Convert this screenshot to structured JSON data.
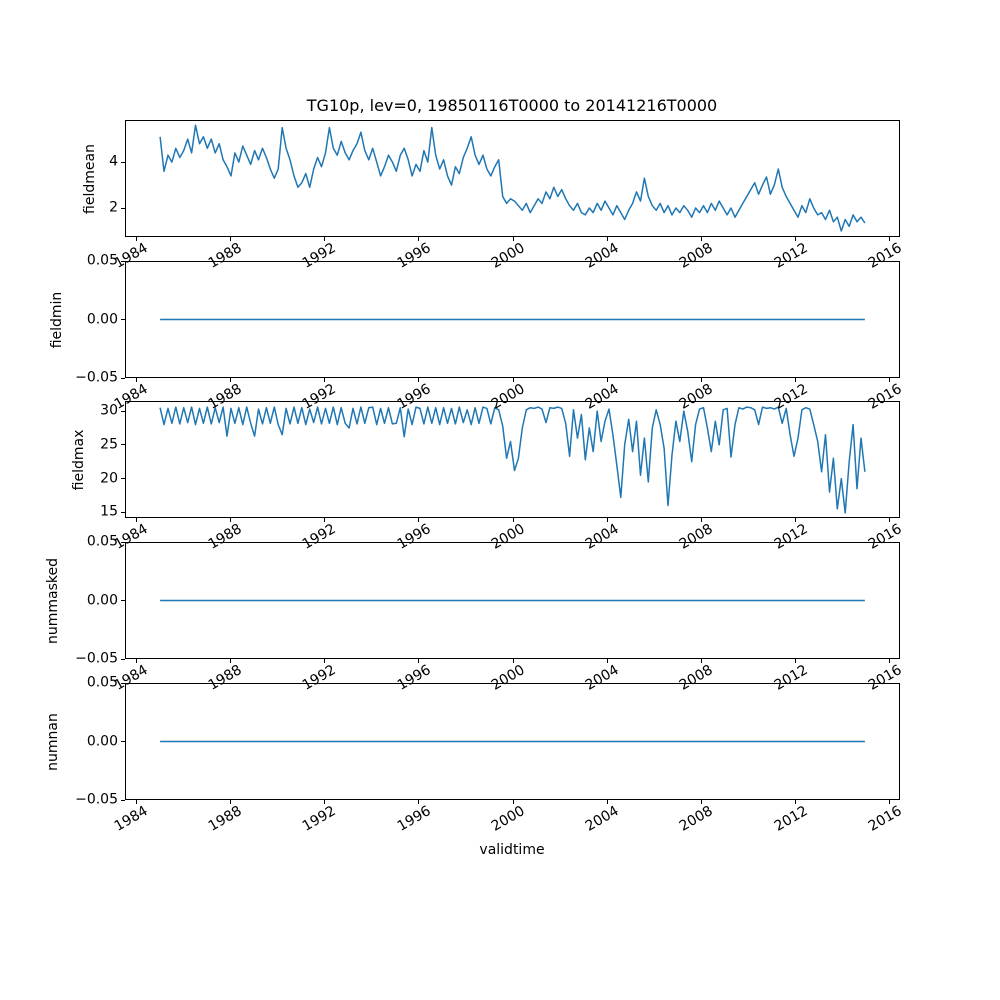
{
  "chart_data": {
    "type": "line",
    "title": "TG10p, lev=0, 19850116T0000 to 20141216T0000",
    "xlabel": "validtime",
    "line_color": "#1f77b4",
    "xlim": [
      1983.55,
      2016.45
    ],
    "x_ticks": [
      {
        "v": 1984,
        "t": "1984"
      },
      {
        "v": 1988,
        "t": "1988"
      },
      {
        "v": 1992,
        "t": "1992"
      },
      {
        "v": 1996,
        "t": "1996"
      },
      {
        "v": 2000,
        "t": "2000"
      },
      {
        "v": 2004,
        "t": "2004"
      },
      {
        "v": 2008,
        "t": "2008"
      },
      {
        "v": 2012,
        "t": "2012"
      },
      {
        "v": 2016,
        "t": "2016"
      }
    ],
    "subplots": [
      {
        "ylabel": "fieldmean",
        "ylim": [
          0.74,
          5.83
        ],
        "yticks": [
          {
            "v": 2,
            "t": "2"
          },
          {
            "v": 4,
            "t": "4"
          }
        ],
        "x_start": 1985.04,
        "x_end": 2014.96,
        "values": [
          5.1,
          3.6,
          4.3,
          4.0,
          4.6,
          4.2,
          4.5,
          5.0,
          4.4,
          5.6,
          4.8,
          5.1,
          4.6,
          5.0,
          4.4,
          4.8,
          4.1,
          3.8,
          3.4,
          4.4,
          4.0,
          4.7,
          4.3,
          3.9,
          4.5,
          4.1,
          4.6,
          4.2,
          3.7,
          3.3,
          3.7,
          5.5,
          4.6,
          4.1,
          3.4,
          2.9,
          3.1,
          3.5,
          2.9,
          3.7,
          4.2,
          3.8,
          4.4,
          5.5,
          4.6,
          4.3,
          4.9,
          4.4,
          4.1,
          4.5,
          4.8,
          5.3,
          4.5,
          4.1,
          4.6,
          4.0,
          3.4,
          3.8,
          4.3,
          4.0,
          3.6,
          4.3,
          4.6,
          4.1,
          3.4,
          3.9,
          3.6,
          4.5,
          4.0,
          5.5,
          4.3,
          3.7,
          4.1,
          3.4,
          3.0,
          3.8,
          3.5,
          4.2,
          4.6,
          5.1,
          4.3,
          3.9,
          4.3,
          3.7,
          3.4,
          3.8,
          4.1,
          2.5,
          2.2,
          2.4,
          2.3,
          2.1,
          1.9,
          2.2,
          1.8,
          2.1,
          2.4,
          2.2,
          2.7,
          2.4,
          2.9,
          2.5,
          2.8,
          2.4,
          2.1,
          1.9,
          2.2,
          1.8,
          1.7,
          2.0,
          1.8,
          2.2,
          1.9,
          2.3,
          2.0,
          1.7,
          2.1,
          1.8,
          1.5,
          1.9,
          2.2,
          2.7,
          2.3,
          3.3,
          2.5,
          2.1,
          1.9,
          2.2,
          1.8,
          2.1,
          1.7,
          2.0,
          1.8,
          2.1,
          1.9,
          1.6,
          2.0,
          1.8,
          2.1,
          1.8,
          2.2,
          1.9,
          2.3,
          2.0,
          1.7,
          2.0,
          1.6,
          1.9,
          2.2,
          2.5,
          2.8,
          3.1,
          2.6,
          3.0,
          3.35,
          2.6,
          3.0,
          3.7,
          2.9,
          2.5,
          2.2,
          1.9,
          1.6,
          2.1,
          1.8,
          2.4,
          2.0,
          1.7,
          1.8,
          1.5,
          1.9,
          1.4,
          1.6,
          1.0,
          1.5,
          1.2,
          1.7,
          1.4,
          1.6,
          1.35
        ]
      },
      {
        "ylabel": "fieldmin",
        "ylim": [
          -0.05,
          0.05
        ],
        "yticks": [
          {
            "v": 0.05,
            "t": "0.05"
          },
          {
            "v": 0,
            "t": "0.00"
          },
          {
            "v": -0.05,
            "t": "−0.05"
          }
        ],
        "x_start": 1985.04,
        "x_end": 2014.96,
        "values": [
          0,
          0
        ]
      },
      {
        "ylabel": "fieldmax",
        "ylim": [
          14.15,
          31.5
        ],
        "yticks": [
          {
            "v": 15,
            "t": "15"
          },
          {
            "v": 20,
            "t": "20"
          },
          {
            "v": 25,
            "t": "25"
          },
          {
            "v": 30,
            "t": "30"
          }
        ],
        "x_start": 1985.04,
        "x_end": 2014.96,
        "values": [
          30.5,
          28.0,
          30.4,
          28.2,
          30.6,
          28.1,
          30.5,
          28.3,
          30.6,
          28.0,
          30.4,
          28.2,
          30.6,
          28.1,
          30.5,
          28.3,
          30.6,
          26.3,
          30.4,
          28.2,
          30.5,
          28.0,
          30.6,
          28.2,
          26.3,
          30.3,
          28.1,
          30.5,
          28.2,
          30.6,
          28.0,
          26.5,
          30.4,
          28.1,
          30.6,
          28.2,
          30.5,
          28.0,
          30.3,
          28.3,
          30.6,
          28.1,
          30.4,
          28.2,
          30.6,
          28.0,
          30.5,
          28.2,
          27.5,
          30.4,
          28.1,
          30.6,
          28.2,
          30.5,
          30.6,
          28.0,
          30.4,
          28.2,
          30.5,
          28.1,
          28.2,
          30.5,
          26.2,
          30.3,
          28.0,
          30.6,
          30.4,
          28.1,
          30.6,
          28.2,
          30.5,
          28.0,
          30.5,
          28.2,
          30.4,
          28.1,
          30.6,
          28.3,
          30.2,
          28.0,
          30.5,
          28.2,
          30.6,
          30.4,
          28.1,
          30.5,
          30.2,
          27.8,
          23.0,
          25.5,
          21.2,
          23.0,
          27.5,
          30.2,
          30.5,
          30.4,
          30.6,
          30.3,
          28.3,
          30.5,
          30.4,
          30.6,
          30.4,
          28.2,
          23.3,
          30.2,
          26.0,
          29.5,
          22.8,
          27.5,
          24.0,
          30.0,
          25.5,
          28.5,
          30.3,
          26.5,
          22.0,
          17.2,
          25.0,
          28.8,
          24.0,
          28.5,
          20.5,
          26.0,
          19.5,
          27.5,
          30.2,
          28.0,
          24.5,
          16.0,
          23.5,
          28.5,
          25.5,
          30.0,
          27.0,
          22.5,
          28.0,
          30.3,
          30.5,
          27.5,
          24.0,
          28.5,
          25.0,
          30.2,
          30.4,
          23.2,
          28.0,
          30.5,
          30.3,
          30.6,
          30.5,
          30.2,
          28.0,
          30.6,
          30.4,
          30.5,
          30.3,
          30.6,
          28.2,
          30.4,
          26.5,
          23.3,
          26.0,
          30.2,
          30.5,
          30.3,
          28.0,
          25.5,
          21.0,
          26.5,
          18.0,
          23.0,
          15.5,
          20.0,
          14.9,
          22.5,
          28.0,
          18.5,
          26.0,
          21.0
        ]
      },
      {
        "ylabel": "nummasked",
        "ylim": [
          -0.05,
          0.05
        ],
        "yticks": [
          {
            "v": 0.05,
            "t": "0.05"
          },
          {
            "v": 0,
            "t": "0.00"
          },
          {
            "v": -0.05,
            "t": "−0.05"
          }
        ],
        "x_start": 1985.04,
        "x_end": 2014.96,
        "values": [
          0,
          0
        ]
      },
      {
        "ylabel": "numnan",
        "ylim": [
          -0.05,
          0.05
        ],
        "yticks": [
          {
            "v": 0.05,
            "t": "0.05"
          },
          {
            "v": 0,
            "t": "0.00"
          },
          {
            "v": -0.05,
            "t": "−0.05"
          }
        ],
        "x_start": 1985.04,
        "x_end": 2014.96,
        "values": [
          0,
          0
        ]
      }
    ]
  }
}
